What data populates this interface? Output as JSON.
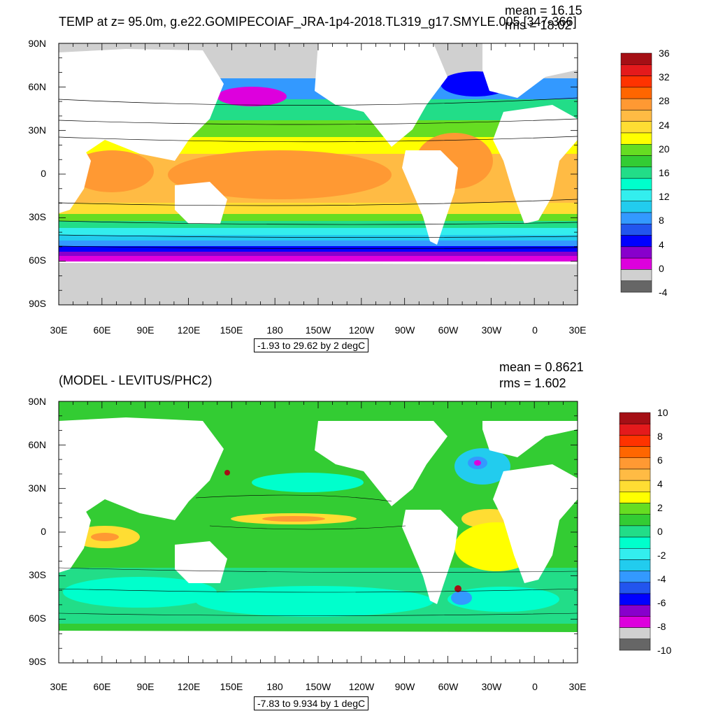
{
  "top": {
    "title": "TEMP at z=  95.0m, g.e22.GOMIPECOIAF_JRA-1p4-2018.TL319_g17.SMYLE.005 [347-366]",
    "mean": "mean = 16.15",
    "rms": "rms = 18.02",
    "range_label": "-1.93 to 29.62 by 2 degC",
    "colorbar": {
      "labels": [
        "36",
        "32",
        "28",
        "24",
        "20",
        "16",
        "12",
        "8",
        "4",
        "0",
        "-4"
      ],
      "colors": [
        "#a50f15",
        "#e41a1c",
        "#ff3300",
        "#ff6600",
        "#ff9933",
        "#ffbb44",
        "#ffdd33",
        "#ffff00",
        "#66dd22",
        "#33cc33",
        "#22dd88",
        "#00ffcc",
        "#33eeee",
        "#22ccee",
        "#3399ff",
        "#2255ee",
        "#0000ff",
        "#8800cc",
        "#dd00dd",
        "#d0d0d0",
        "#666666"
      ]
    }
  },
  "bottom": {
    "title": "(MODEL - LEVITUS/PHC2)",
    "mean": "mean = 0.8621",
    "rms": "rms = 1.602",
    "range_label": "-7.83 to 9.934 by 1 degC",
    "colorbar": {
      "labels": [
        "10",
        "8",
        "6",
        "4",
        "2",
        "0",
        "-2",
        "-4",
        "-6",
        "-8",
        "-10"
      ],
      "colors": [
        "#a50f15",
        "#e41a1c",
        "#ff3300",
        "#ff6600",
        "#ff9933",
        "#ffbb44",
        "#ffdd33",
        "#ffff00",
        "#66dd22",
        "#33cc33",
        "#22dd88",
        "#00ffcc",
        "#33eeee",
        "#22ccee",
        "#3399ff",
        "#2255ee",
        "#0000ff",
        "#8800cc",
        "#dd00dd",
        "#d0d0d0",
        "#666666"
      ]
    }
  },
  "axes": {
    "lat_labels": [
      "90N",
      "60N",
      "30N",
      "0",
      "30S",
      "60S",
      "90S"
    ],
    "lon_labels": [
      "30E",
      "60E",
      "90E",
      "120E",
      "150E",
      "180",
      "150W",
      "120W",
      "90W",
      "60W",
      "30W",
      "0",
      "30E"
    ]
  }
}
